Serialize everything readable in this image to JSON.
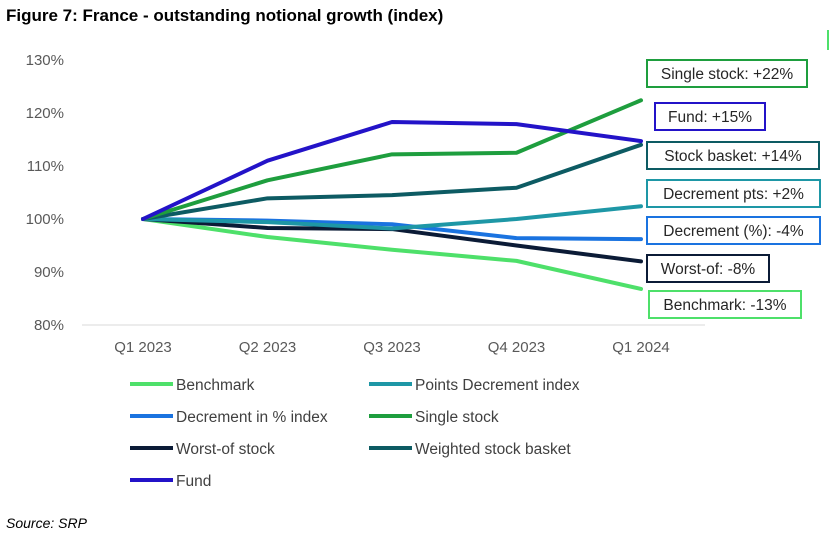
{
  "chart_data": {
    "type": "line",
    "title": "Figure 7: France - outstanding notional growth (index)",
    "source": "Source: SRP",
    "categories": [
      "Q1 2023",
      "Q2 2023",
      "Q3 2023",
      "Q4 2023",
      "Q1 2024"
    ],
    "y_ticks": [
      "80%",
      "90%",
      "100%",
      "110%",
      "120%",
      "130%"
    ],
    "ylim": [
      80,
      130
    ],
    "grid": false,
    "legend_position": "bottom",
    "series": [
      {
        "name": "Benchmark",
        "color": "#4ee06a",
        "values": [
          100,
          96.6,
          94.2,
          92.1,
          86.8
        ],
        "callout": "Benchmark: -13%"
      },
      {
        "name": "Points Decrement index",
        "color": "#1e97a6",
        "values": [
          100,
          99.4,
          98.2,
          100.0,
          102.4
        ],
        "callout": "Decrement pts: +2%"
      },
      {
        "name": "Decrement in % index",
        "color": "#1a73e0",
        "values": [
          100,
          99.7,
          99.0,
          96.4,
          96.2
        ],
        "callout": "Decrement (%): -4%"
      },
      {
        "name": "Single stock",
        "color": "#1e9e3e",
        "values": [
          100,
          107.3,
          112.2,
          112.5,
          122.4
        ],
        "callout": "Single stock: +22%"
      },
      {
        "name": "Worst-of stock",
        "color": "#0b1b36",
        "values": [
          100,
          98.3,
          98.1,
          95.0,
          92.0
        ],
        "callout": "Worst-of: -8%"
      },
      {
        "name": "Weighted stock basket",
        "color": "#0d5b63",
        "values": [
          100,
          103.9,
          104.5,
          105.9,
          114.0
        ],
        "callout": "Stock basket: +14%"
      },
      {
        "name": "Fund",
        "color": "#2313c8",
        "values": [
          100,
          111.0,
          118.3,
          117.9,
          114.7
        ],
        "callout": "Fund: +15%"
      }
    ]
  }
}
